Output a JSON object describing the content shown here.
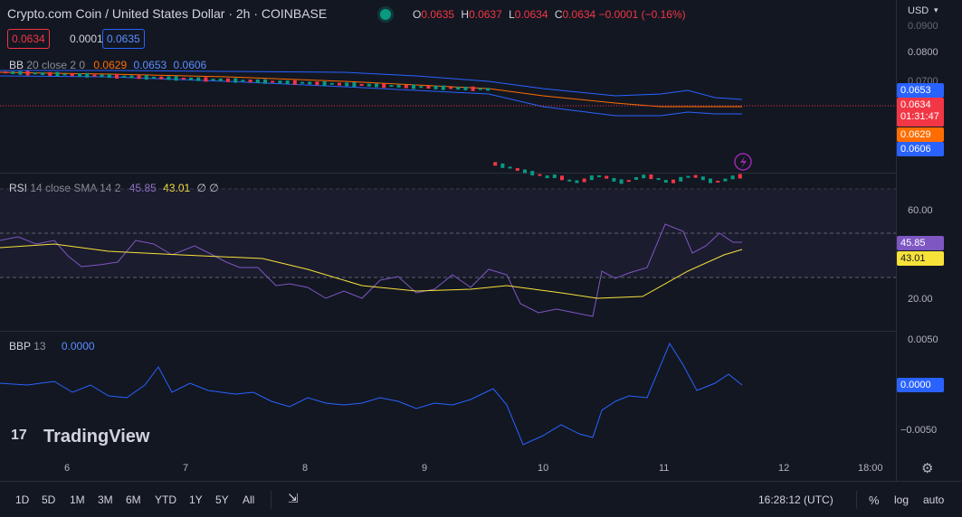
{
  "header": {
    "title": "Crypto.com Coin / United States Dollar · 2h · COINBASE",
    "ohlc": {
      "o_label": "O",
      "o": "0.0635",
      "h_label": "H",
      "h": "0.0637",
      "l_label": "L",
      "l": "0.0634",
      "c_label": "C",
      "c": "0.0634",
      "change": "−0.0001 (−0.16%)"
    },
    "sell_price": "0.0634",
    "spread": "0.0001",
    "buy_price": "0.0635",
    "currency": "USD"
  },
  "bb": {
    "name": "BB",
    "params": "20 close 2 0",
    "basis": "0.0629",
    "upper": "0.0653",
    "lower": "0.0606"
  },
  "rsi": {
    "name": "RSI",
    "params": "14 close SMA 14 2",
    "value": "45.85",
    "sma": "43.01",
    "extra": "∅ ∅"
  },
  "bbp": {
    "name": "BBP",
    "params": "13",
    "value": "0.0000"
  },
  "price_axis": {
    "top": "0.0900",
    "l1": "0.0800",
    "l2": "0.0700"
  },
  "rsi_axis": {
    "l60": "60.00",
    "l20": "20.00"
  },
  "bbp_axis": {
    "top": "0.0050",
    "bottom": "−0.0050"
  },
  "tags": {
    "upper": "0.0653",
    "last": "0.0634",
    "countdown": "01:31:47",
    "basis": "0.0629",
    "lower": "0.0606",
    "rsi": "45.85",
    "rsi_sma": "43.01",
    "bbp": "0.0000"
  },
  "dates": [
    "6",
    "7",
    "8",
    "9",
    "10",
    "11",
    "12",
    "18:00"
  ],
  "timeframes": [
    "1D",
    "5D",
    "1M",
    "3M",
    "6M",
    "YTD",
    "1Y",
    "5Y",
    "All"
  ],
  "footer": {
    "time": "16:28:12 (UTC)",
    "percent": "%",
    "log": "log",
    "auto": "auto"
  },
  "watermark": "TradingView",
  "colors": {
    "bg": "#131722",
    "up": "#089981",
    "down": "#f23645",
    "bb_band": "#2962ff",
    "bb_basis": "#ff6d00",
    "rsi": "#7e57c2",
    "rsi_sma": "#f7e23a",
    "bbp": "#2962ff"
  }
}
